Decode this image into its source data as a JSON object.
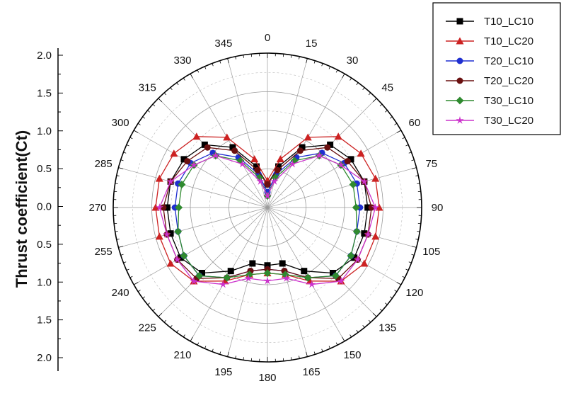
{
  "chart_data": {
    "type": "line",
    "subtype": "polar",
    "ylabel": "Thrust coefficient(Ct)",
    "radial_range": [
      0,
      2.0
    ],
    "radial_ticks": [
      "2.0",
      "1.5",
      "1.0",
      "0.5",
      "0.0",
      "0.5",
      "1.0",
      "1.5",
      "2.0"
    ],
    "angle_ticks": [
      "0",
      "15",
      "30",
      "45",
      "60",
      "75",
      "90",
      "105",
      "120",
      "135",
      "150",
      "165",
      "180",
      "195",
      "210",
      "225",
      "240",
      "255",
      "270",
      "285",
      "300",
      "315",
      "330",
      "345"
    ],
    "angle_direction": "clockwise",
    "zero_angle": "top",
    "grid": true,
    "legend_position": "top-right",
    "angles": [
      0,
      15,
      30,
      45,
      60,
      75,
      90,
      105,
      120,
      135,
      150,
      165,
      180,
      195,
      210,
      225,
      240,
      255,
      270,
      285,
      300,
      315,
      330,
      345
    ],
    "series": [
      {
        "name": "T10_LC10",
        "color": "#000000",
        "marker": "square",
        "values": [
          0.3,
          0.55,
          0.9,
          1.15,
          1.25,
          1.3,
          1.3,
          1.3,
          1.3,
          1.2,
          0.95,
          0.75,
          0.75,
          0.75,
          0.95,
          1.2,
          1.3,
          1.3,
          1.3,
          1.3,
          1.25,
          1.15,
          0.9,
          0.55
        ]
      },
      {
        "name": "T10_LC20",
        "color": "#cc2222",
        "marker": "triangle",
        "values": [
          0.35,
          0.65,
          1.05,
          1.3,
          1.4,
          1.45,
          1.45,
          1.45,
          1.45,
          1.35,
          1.1,
          0.9,
          0.85,
          0.9,
          1.1,
          1.35,
          1.45,
          1.45,
          1.45,
          1.45,
          1.4,
          1.3,
          1.05,
          0.65
        ]
      },
      {
        "name": "T20_LC10",
        "color": "#1f2fd0",
        "marker": "circle",
        "values": [
          0.2,
          0.45,
          0.75,
          1.0,
          1.15,
          1.2,
          1.2,
          1.2,
          1.25,
          1.25,
          1.05,
          0.85,
          0.8,
          0.85,
          1.05,
          1.25,
          1.25,
          1.2,
          1.2,
          1.2,
          1.15,
          1.0,
          0.75,
          0.45
        ]
      },
      {
        "name": "T20_LC20",
        "color": "#6a1010",
        "marker": "circle",
        "values": [
          0.3,
          0.5,
          0.85,
          1.1,
          1.2,
          1.3,
          1.35,
          1.35,
          1.35,
          1.3,
          1.05,
          0.85,
          0.8,
          0.85,
          1.05,
          1.3,
          1.35,
          1.35,
          1.35,
          1.3,
          1.2,
          1.1,
          0.85,
          0.5
        ]
      },
      {
        "name": "T30_LC10",
        "color": "#2f8a2f",
        "marker": "diamond",
        "values": [
          0.15,
          0.4,
          0.7,
          0.95,
          1.1,
          1.15,
          1.15,
          1.2,
          1.25,
          1.25,
          1.05,
          0.9,
          0.85,
          0.9,
          1.05,
          1.25,
          1.25,
          1.2,
          1.15,
          1.15,
          1.1,
          0.95,
          0.7,
          0.4
        ]
      },
      {
        "name": "T30_LC20",
        "color": "#cc33cc",
        "marker": "star",
        "values": [
          0.15,
          0.35,
          0.65,
          0.95,
          1.1,
          1.3,
          1.4,
          1.35,
          1.35,
          1.35,
          1.15,
          0.95,
          0.95,
          0.95,
          1.15,
          1.35,
          1.35,
          1.35,
          1.4,
          1.3,
          1.1,
          0.95,
          0.65,
          0.35
        ]
      }
    ]
  }
}
